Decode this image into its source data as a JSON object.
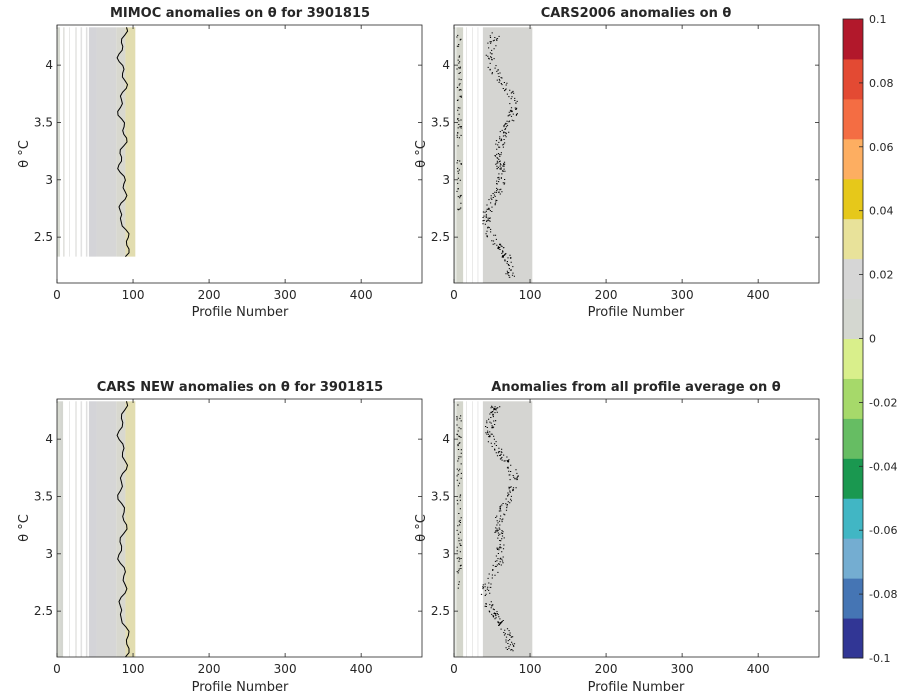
{
  "chart_data": [
    {
      "type": "heatmap",
      "title": "MIMOC anomalies on θ  for 3901815",
      "xlabel": "Profile Number",
      "ylabel": "θ °C",
      "xlim": [
        0,
        480
      ],
      "ylim": [
        2.1,
        4.35
      ],
      "xticks": [
        0,
        100,
        200,
        300,
        400
      ],
      "yticks": [
        2.5,
        3,
        3.5,
        4
      ],
      "data_extent": {
        "x": [
          0,
          103
        ],
        "y": [
          2.33,
          4.33
        ]
      },
      "contour_level": 0
    },
    {
      "type": "heatmap",
      "title": "CARS2006 anomalies on θ",
      "xlabel": "Profile Number",
      "ylabel": "θ °C",
      "xlim": [
        0,
        480
      ],
      "ylim": [
        2.1,
        4.35
      ],
      "xticks": [
        0,
        100,
        200,
        300,
        400
      ],
      "yticks": [
        2.5,
        3,
        3.5,
        4
      ],
      "data_extent": {
        "x": [
          0,
          103
        ],
        "y": [
          2.1,
          4.33
        ]
      },
      "contour_level": 0
    },
    {
      "type": "heatmap",
      "title": "CARS NEW anomalies on θ for 3901815",
      "xlabel": "Profile Number",
      "ylabel": "θ °C",
      "xlim": [
        0,
        480
      ],
      "ylim": [
        2.1,
        4.35
      ],
      "xticks": [
        0,
        100,
        200,
        300,
        400
      ],
      "yticks": [
        2.5,
        3,
        3.5,
        4
      ],
      "data_extent": {
        "x": [
          0,
          103
        ],
        "y": [
          2.1,
          4.33
        ]
      },
      "contour_level": 0
    },
    {
      "type": "heatmap",
      "title": "Anomalies from all profile average on θ",
      "xlabel": "Profile Number",
      "ylabel": "θ °C",
      "xlim": [
        0,
        480
      ],
      "ylim": [
        2.1,
        4.35
      ],
      "xticks": [
        0,
        100,
        200,
        300,
        400
      ],
      "yticks": [
        2.5,
        3,
        3.5,
        4
      ],
      "data_extent": {
        "x": [
          0,
          103
        ],
        "y": [
          2.1,
          4.33
        ]
      },
      "contour_level": 0
    }
  ],
  "colorbar": {
    "range": [
      -0.1,
      0.1
    ],
    "ticks": [
      "0.1",
      "0.08",
      "0.06",
      "0.04",
      "0.02",
      "0",
      "-0.02",
      "-0.04",
      "-0.06",
      "-0.08",
      "-0.1"
    ],
    "colors": [
      "#313695",
      "#4575b4",
      "#74add1",
      "#41b6c4",
      "#1a9850",
      "#66bd63",
      "#a6d96a",
      "#d9ef8b",
      "#d4d7d0",
      "#d6d6d6",
      "#e8e29a",
      "#e6c81a",
      "#fdae61",
      "#f46d43",
      "#e34a33",
      "#b2182b"
    ]
  }
}
